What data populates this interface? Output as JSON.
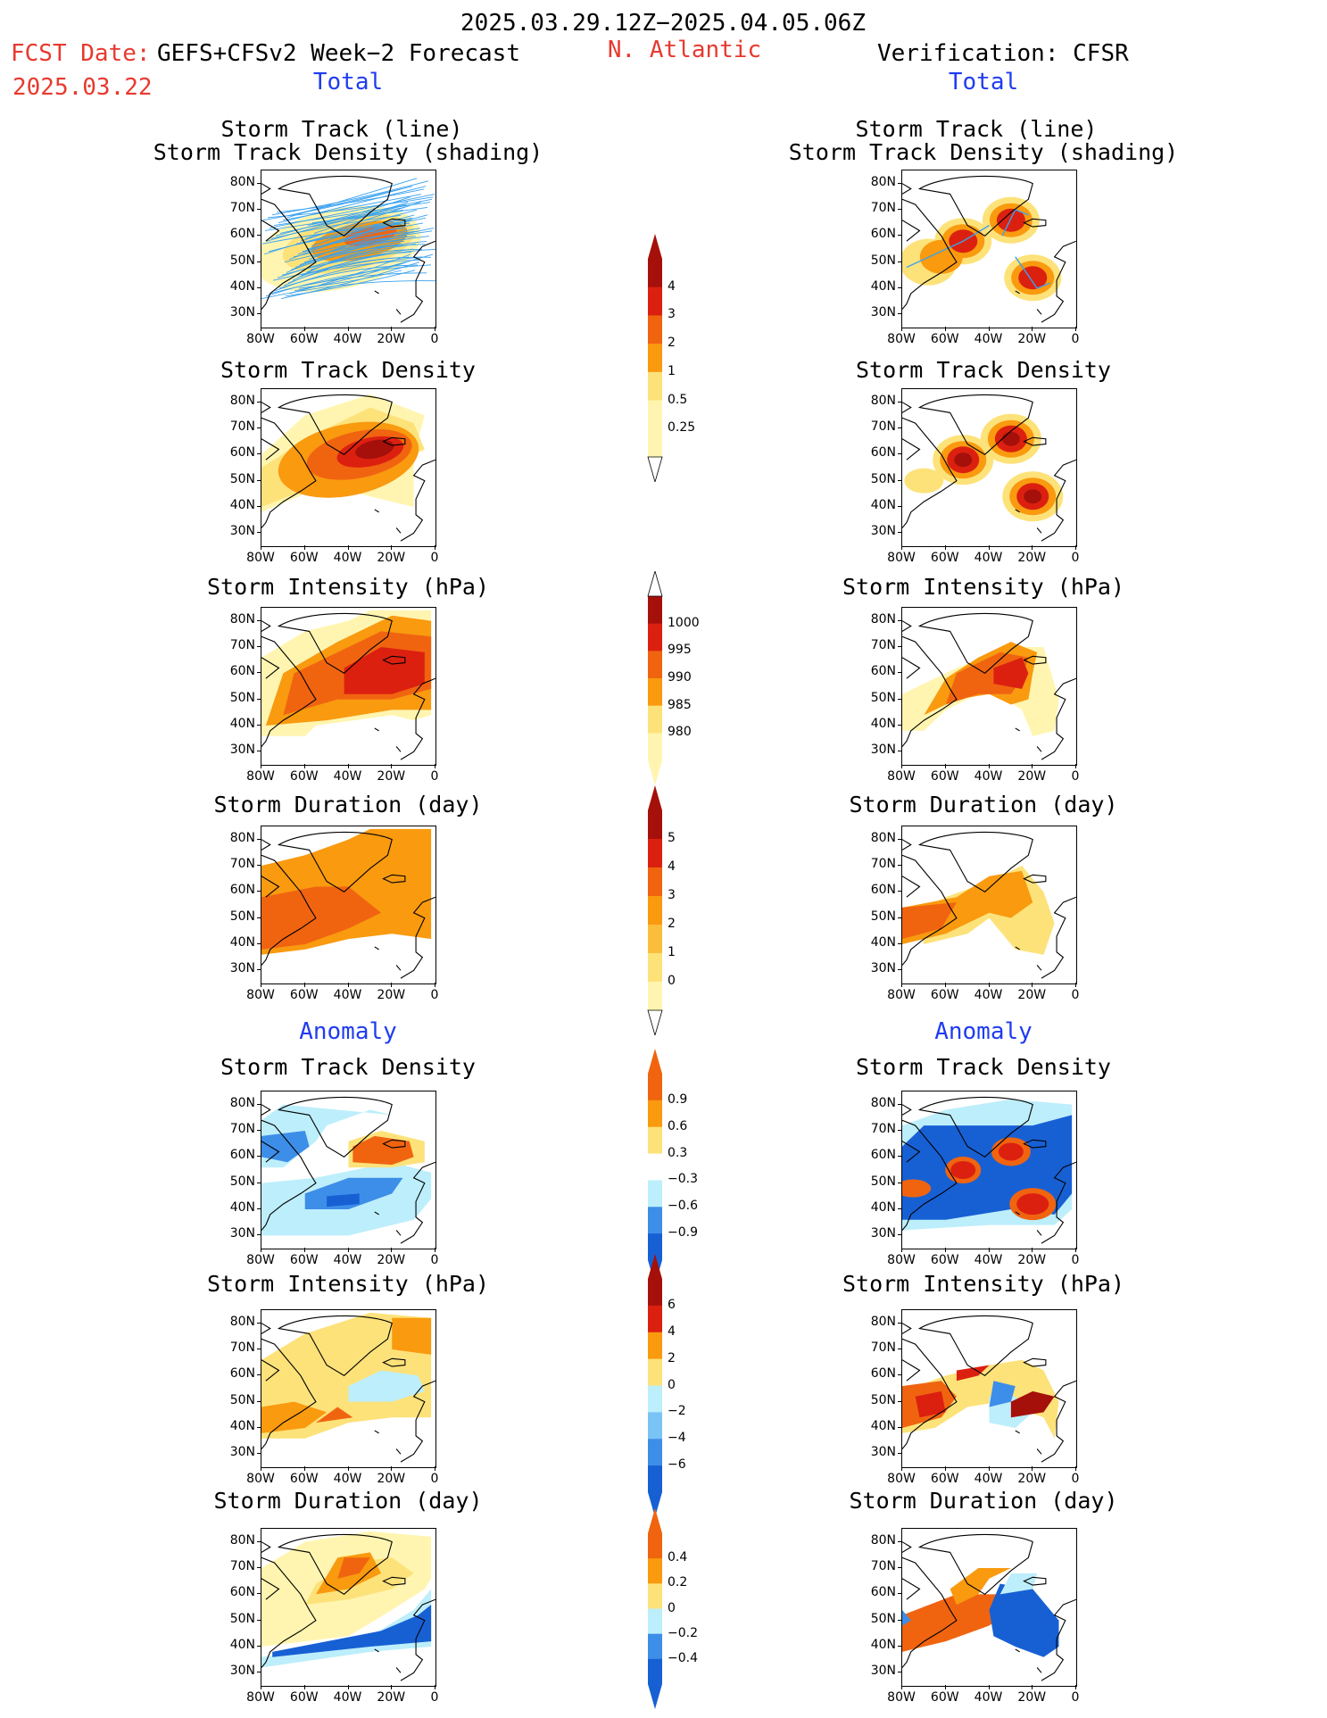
{
  "header": {
    "period": "2025.03.29.12Z−2025.04.05.06Z",
    "fcst_label": "FCST Date:",
    "fcst_model": "GEFS+CFSv2 Week−2 Forecast",
    "fcst_date": "2025.03.22",
    "region": "N. Atlantic",
    "verification": "Verification: CFSR",
    "total_left": "Total",
    "total_right": "Total",
    "anomaly_left": "Anomaly",
    "anomaly_right": "Anomaly"
  },
  "panel_titles": {
    "track_line": "Storm Track (line)",
    "track_density_shading": "Storm Track Density (shading)",
    "track_density": "Storm Track Density",
    "intensity": "Storm Intensity (hPa)",
    "duration": "Storm Duration (day)"
  },
  "axes": {
    "lat_labels": [
      "80N",
      "70N",
      "60N",
      "50N",
      "40N",
      "30N"
    ],
    "lon_labels": [
      "80W",
      "60W",
      "40W",
      "20W",
      "0"
    ]
  },
  "colorbars": {
    "density": [
      "4",
      "3",
      "2",
      "1",
      "0.5",
      "0.25"
    ],
    "intensity": [
      "1000",
      "995",
      "990",
      "985",
      "980"
    ],
    "duration": [
      "5",
      "4",
      "3",
      "2",
      "1",
      "0"
    ],
    "density_anom": [
      "0.9",
      "0.6",
      "0.3",
      "−0.3",
      "−0.6",
      "−0.9"
    ],
    "intensity_anom": [
      "6",
      "4",
      "2",
      "0",
      "−2",
      "−4",
      "−6"
    ],
    "duration_anom": [
      "0.4",
      "0.2",
      "0",
      "−0.2",
      "−0.4"
    ]
  },
  "colors": {
    "very_light": "#fff5b0",
    "light_yellow": "#fde27a",
    "yellow_orange": "#fbbe3c",
    "orange": "#f99a0f",
    "dark_orange": "#f06410",
    "red": "#dc2010",
    "dark_red": "#a5100a",
    "light_blue": "#bdeefb",
    "mid_blue": "#7ac3f5",
    "blue": "#3d8ee8",
    "dark_blue": "#1760d4",
    "track_blue": "#3aa2ef"
  }
}
